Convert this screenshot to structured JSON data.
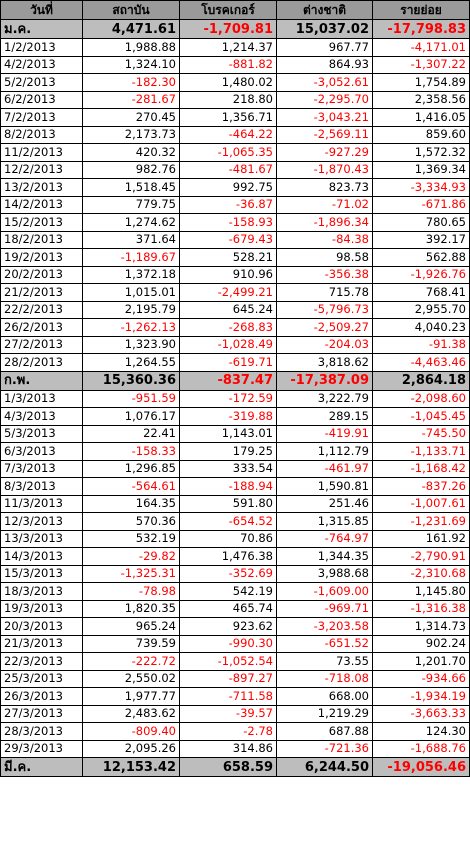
{
  "headers": [
    "วันที่",
    "สถาบัน",
    "โบรคเกอร์",
    "ต่างชาติ",
    "รายย่อย"
  ],
  "rows": [
    {
      "type": "summary",
      "cells": [
        "ม.ค.",
        "4,471.61",
        "-1,709.81",
        "15,037.02",
        "-17,798.83"
      ]
    },
    {
      "type": "data",
      "cells": [
        "1/2/2013",
        "1,988.88",
        "1,214.37",
        "967.77",
        "-4,171.01"
      ]
    },
    {
      "type": "data",
      "cells": [
        "4/2/2013",
        "1,324.10",
        "-881.82",
        "864.93",
        "-1,307.22"
      ]
    },
    {
      "type": "data",
      "cells": [
        "5/2/2013",
        "-182.30",
        "1,480.02",
        "-3,052.61",
        "1,754.89"
      ]
    },
    {
      "type": "data",
      "cells": [
        "6/2/2013",
        "-281.67",
        "218.80",
        "-2,295.70",
        "2,358.56"
      ]
    },
    {
      "type": "data",
      "cells": [
        "7/2/2013",
        "270.45",
        "1,356.71",
        "-3,043.21",
        "1,416.05"
      ]
    },
    {
      "type": "data",
      "cells": [
        "8/2/2013",
        "2,173.73",
        "-464.22",
        "-2,569.11",
        "859.60"
      ]
    },
    {
      "type": "data",
      "cells": [
        "11/2/2013",
        "420.32",
        "-1,065.35",
        "-927.29",
        "1,572.32"
      ]
    },
    {
      "type": "data",
      "cells": [
        "12/2/2013",
        "982.76",
        "-481.67",
        "-1,870.43",
        "1,369.34"
      ]
    },
    {
      "type": "data",
      "cells": [
        "13/2/2013",
        "1,518.45",
        "992.75",
        "823.73",
        "-3,334.93"
      ]
    },
    {
      "type": "data",
      "cells": [
        "14/2/2013",
        "779.75",
        "-36.87",
        "-71.02",
        "-671.86"
      ]
    },
    {
      "type": "data",
      "cells": [
        "15/2/2013",
        "1,274.62",
        "-158.93",
        "-1,896.34",
        "780.65"
      ]
    },
    {
      "type": "data",
      "cells": [
        "18/2/2013",
        "371.64",
        "-679.43",
        "-84.38",
        "392.17"
      ]
    },
    {
      "type": "data",
      "cells": [
        "19/2/2013",
        "-1,189.67",
        "528.21",
        "98.58",
        "562.88"
      ]
    },
    {
      "type": "data",
      "cells": [
        "20/2/2013",
        "1,372.18",
        "910.96",
        "-356.38",
        "-1,926.76"
      ]
    },
    {
      "type": "data",
      "cells": [
        "21/2/2013",
        "1,015.01",
        "-2,499.21",
        "715.78",
        "768.41"
      ]
    },
    {
      "type": "data",
      "cells": [
        "22/2/2013",
        "2,195.79",
        "645.24",
        "-5,796.73",
        "2,955.70"
      ]
    },
    {
      "type": "data",
      "cells": [
        "26/2/2013",
        "-1,262.13",
        "-268.83",
        "-2,509.27",
        "4,040.23"
      ]
    },
    {
      "type": "data",
      "cells": [
        "27/2/2013",
        "1,323.90",
        "-1,028.49",
        "-204.03",
        "-91.38"
      ]
    },
    {
      "type": "data",
      "cells": [
        "28/2/2013",
        "1,264.55",
        "-619.71",
        "3,818.62",
        "-4,463.46"
      ]
    },
    {
      "type": "summary",
      "cells": [
        "ก.พ.",
        "15,360.36",
        "-837.47",
        "-17,387.09",
        "2,864.18"
      ]
    },
    {
      "type": "data",
      "cells": [
        "1/3/2013",
        "-951.59",
        "-172.59",
        "3,222.79",
        "-2,098.60"
      ]
    },
    {
      "type": "data",
      "cells": [
        "4/3/2013",
        "1,076.17",
        "-319.88",
        "289.15",
        "-1,045.45"
      ]
    },
    {
      "type": "data",
      "cells": [
        "5/3/2013",
        "22.41",
        "1,143.01",
        "-419.91",
        "-745.50"
      ]
    },
    {
      "type": "data",
      "cells": [
        "6/3/2013",
        "-158.33",
        "179.25",
        "1,112.79",
        "-1,133.71"
      ]
    },
    {
      "type": "data",
      "cells": [
        "7/3/2013",
        "1,296.85",
        "333.54",
        "-461.97",
        "-1,168.42"
      ]
    },
    {
      "type": "data",
      "cells": [
        "8/3/2013",
        "-564.61",
        "-188.94",
        "1,590.81",
        "-837.26"
      ]
    },
    {
      "type": "data",
      "cells": [
        "11/3/2013",
        "164.35",
        "591.80",
        "251.46",
        "-1,007.61"
      ]
    },
    {
      "type": "data",
      "cells": [
        "12/3/2013",
        "570.36",
        "-654.52",
        "1,315.85",
        "-1,231.69"
      ]
    },
    {
      "type": "data",
      "cells": [
        "13/3/2013",
        "532.19",
        "70.86",
        "-764.97",
        "161.92"
      ]
    },
    {
      "type": "data",
      "cells": [
        "14/3/2013",
        "-29.82",
        "1,476.38",
        "1,344.35",
        "-2,790.91"
      ]
    },
    {
      "type": "data",
      "cells": [
        "15/3/2013",
        "-1,325.31",
        "-352.69",
        "3,988.68",
        "-2,310.68"
      ]
    },
    {
      "type": "data",
      "cells": [
        "18/3/2013",
        "-78.98",
        "542.19",
        "-1,609.00",
        "1,145.80"
      ]
    },
    {
      "type": "data",
      "cells": [
        "19/3/2013",
        "1,820.35",
        "465.74",
        "-969.71",
        "-1,316.38"
      ]
    },
    {
      "type": "data",
      "cells": [
        "20/3/2013",
        "965.24",
        "923.62",
        "-3,203.58",
        "1,314.73"
      ]
    },
    {
      "type": "data",
      "cells": [
        "21/3/2013",
        "739.59",
        "-990.30",
        "-651.52",
        "902.24"
      ]
    },
    {
      "type": "data",
      "cells": [
        "22/3/2013",
        "-222.72",
        "-1,052.54",
        "73.55",
        "1,201.70"
      ]
    },
    {
      "type": "data",
      "cells": [
        "25/3/2013",
        "2,550.02",
        "-897.27",
        "-718.08",
        "-934.66"
      ]
    },
    {
      "type": "data",
      "cells": [
        "26/3/2013",
        "1,977.77",
        "-711.58",
        "668.00",
        "-1,934.19"
      ]
    },
    {
      "type": "data",
      "cells": [
        "27/3/2013",
        "2,483.62",
        "-39.57",
        "1,219.29",
        "-3,663.33"
      ]
    },
    {
      "type": "data",
      "cells": [
        "28/3/2013",
        "-809.40",
        "-2.78",
        "687.88",
        "124.30"
      ]
    },
    {
      "type": "data",
      "cells": [
        "29/3/2013",
        "2,095.26",
        "314.86",
        "-721.36",
        "-1,688.76"
      ]
    },
    {
      "type": "summary",
      "cells": [
        "มี.ค.",
        "12,153.42",
        "658.59",
        "6,244.50",
        "-19,056.46"
      ]
    }
  ],
  "colors": {
    "header_bg": "#9a9a9a",
    "summary_bg": "#bdbdbd",
    "negative_text": "#ff0000",
    "grid": "#000000"
  }
}
